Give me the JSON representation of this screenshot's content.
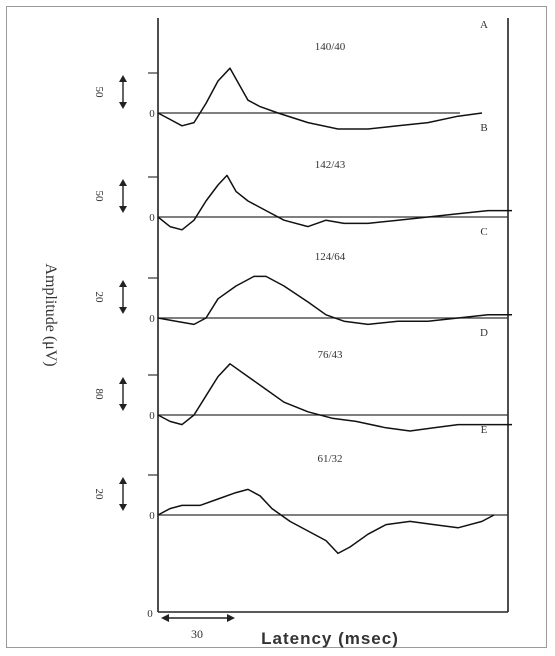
{
  "chart_data": {
    "type": "line",
    "ylabel": "Amplitude (μV)",
    "xlabel": "Latency (msec)",
    "x_scale_bar": "30",
    "panels": [
      {
        "panel_letter": "A",
        "annotation": "140/40",
        "scale_label": "50",
        "zero_label": "0",
        "points": [
          [
            0,
            0
          ],
          [
            4,
            -2
          ],
          [
            8,
            -4
          ],
          [
            12,
            -3
          ],
          [
            16,
            3
          ],
          [
            20,
            10
          ],
          [
            24,
            14
          ],
          [
            27,
            9
          ],
          [
            30,
            4
          ],
          [
            34,
            2
          ],
          [
            40,
            0
          ],
          [
            50,
            -3
          ],
          [
            60,
            -5
          ],
          [
            70,
            -5
          ],
          [
            80,
            -4
          ],
          [
            90,
            -3
          ],
          [
            100,
            -1
          ],
          [
            108,
            0
          ]
        ]
      },
      {
        "panel_letter": "B",
        "annotation": "142/43",
        "scale_label": "50",
        "zero_label": "0",
        "points": [
          [
            0,
            0
          ],
          [
            4,
            -3
          ],
          [
            8,
            -4
          ],
          [
            12,
            -1
          ],
          [
            16,
            5
          ],
          [
            20,
            10
          ],
          [
            23,
            13
          ],
          [
            26,
            8
          ],
          [
            30,
            5
          ],
          [
            36,
            2
          ],
          [
            42,
            -1
          ],
          [
            50,
            -3
          ],
          [
            56,
            -1
          ],
          [
            62,
            -2
          ],
          [
            70,
            -2
          ],
          [
            80,
            -1
          ],
          [
            90,
            0
          ],
          [
            100,
            1
          ],
          [
            110,
            2
          ],
          [
            118,
            2
          ]
        ]
      },
      {
        "panel_letter": "C",
        "annotation": "124/64",
        "scale_label": "20",
        "zero_label": "0",
        "points": [
          [
            0,
            0
          ],
          [
            6,
            -1
          ],
          [
            12,
            -2
          ],
          [
            16,
            0
          ],
          [
            20,
            6
          ],
          [
            26,
            10
          ],
          [
            32,
            13
          ],
          [
            36,
            13
          ],
          [
            42,
            10
          ],
          [
            50,
            5
          ],
          [
            56,
            1
          ],
          [
            62,
            -1
          ],
          [
            70,
            -2
          ],
          [
            80,
            -1
          ],
          [
            90,
            -1
          ],
          [
            100,
            0
          ],
          [
            110,
            1
          ],
          [
            118,
            1
          ]
        ]
      },
      {
        "panel_letter": "D",
        "annotation": "76/43",
        "scale_label": "80",
        "zero_label": "0",
        "points": [
          [
            0,
            0
          ],
          [
            4,
            -2
          ],
          [
            8,
            -3
          ],
          [
            12,
            0
          ],
          [
            16,
            6
          ],
          [
            20,
            12
          ],
          [
            24,
            16
          ],
          [
            30,
            12
          ],
          [
            36,
            8
          ],
          [
            42,
            4
          ],
          [
            50,
            1
          ],
          [
            58,
            -1
          ],
          [
            66,
            -2
          ],
          [
            76,
            -4
          ],
          [
            84,
            -5
          ],
          [
            92,
            -4
          ],
          [
            100,
            -3
          ],
          [
            108,
            -3
          ],
          [
            118,
            -3
          ]
        ]
      },
      {
        "panel_letter": "E",
        "annotation": "61/32",
        "scale_label": "20",
        "zero_label": "0",
        "points": [
          [
            0,
            0
          ],
          [
            4,
            2
          ],
          [
            8,
            3
          ],
          [
            14,
            3
          ],
          [
            20,
            5
          ],
          [
            26,
            7
          ],
          [
            30,
            8
          ],
          [
            34,
            6
          ],
          [
            38,
            2
          ],
          [
            44,
            -2
          ],
          [
            50,
            -5
          ],
          [
            56,
            -8
          ],
          [
            60,
            -12
          ],
          [
            64,
            -10
          ],
          [
            70,
            -6
          ],
          [
            76,
            -3
          ],
          [
            84,
            -2
          ],
          [
            92,
            -3
          ],
          [
            100,
            -4
          ],
          [
            108,
            -2
          ],
          [
            112,
            0
          ]
        ]
      }
    ],
    "x_zero_label": "0"
  }
}
